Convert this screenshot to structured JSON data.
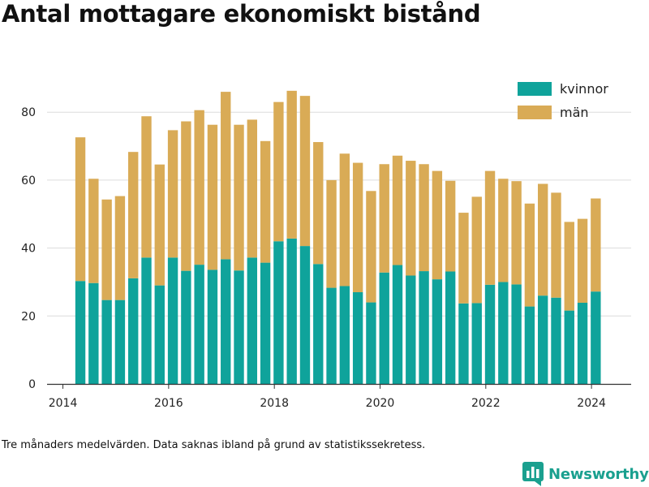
{
  "page": {
    "title": "Antal mottagare ekonomiskt bistånd",
    "note": "Tre månaders medelvärden. Data saknas ibland på grund av statistikssekretess.",
    "brand": {
      "name": "Newsworthy",
      "icon": "newsworthy-logo-icon",
      "color": "#1aa08f"
    }
  },
  "chart_data": {
    "type": "bar",
    "stacked": true,
    "x_axis": {
      "ticks": [
        2014,
        2016,
        2018,
        2020,
        2022,
        2024
      ],
      "range": [
        2013.7,
        2024.75
      ]
    },
    "y_axis": {
      "ticks": [
        0,
        20,
        40,
        60,
        80
      ],
      "range": [
        0,
        92
      ]
    },
    "grid": "horizontal",
    "legend_position": "top-right",
    "x": [
      2014.33,
      2014.58,
      2014.83,
      2015.08,
      2015.33,
      2015.58,
      2015.83,
      2016.08,
      2016.33,
      2016.58,
      2016.83,
      2017.08,
      2017.33,
      2017.58,
      2017.83,
      2018.08,
      2018.33,
      2018.58,
      2018.83,
      2019.08,
      2019.33,
      2019.58,
      2019.83,
      2020.08,
      2020.33,
      2020.58,
      2020.83,
      2021.08,
      2021.33,
      2021.58,
      2021.83,
      2022.08,
      2022.33,
      2022.58,
      2022.83,
      2023.08,
      2023.33,
      2023.58,
      2023.83,
      2024.08
    ],
    "series": [
      {
        "name": "kvinnor",
        "color": "#0fa39b",
        "values": [
          30.3,
          29.7,
          24.7,
          24.7,
          31.1,
          37.2,
          29.0,
          37.2,
          33.3,
          35.1,
          33.6,
          36.7,
          33.4,
          37.2,
          35.7,
          42.0,
          42.8,
          40.6,
          35.3,
          28.3,
          28.8,
          27.0,
          24.0,
          32.8,
          35.0,
          31.9,
          33.2,
          30.8,
          33.1,
          23.7,
          23.8,
          29.2,
          30.0,
          29.3,
          22.8,
          26.0,
          25.4,
          21.6,
          23.9,
          27.2
        ]
      },
      {
        "name": "män",
        "color": "#d9ab56",
        "values": [
          42.3,
          30.7,
          29.6,
          30.6,
          37.2,
          41.6,
          35.6,
          37.5,
          44.0,
          45.5,
          42.7,
          49.3,
          42.9,
          40.6,
          35.8,
          41.0,
          43.5,
          44.2,
          35.9,
          31.7,
          39.0,
          38.1,
          32.8,
          31.9,
          32.2,
          33.8,
          31.5,
          31.9,
          26.7,
          26.7,
          31.3,
          33.5,
          30.4,
          30.4,
          30.3,
          32.9,
          30.9,
          26.1,
          24.7,
          27.4
        ]
      }
    ]
  }
}
